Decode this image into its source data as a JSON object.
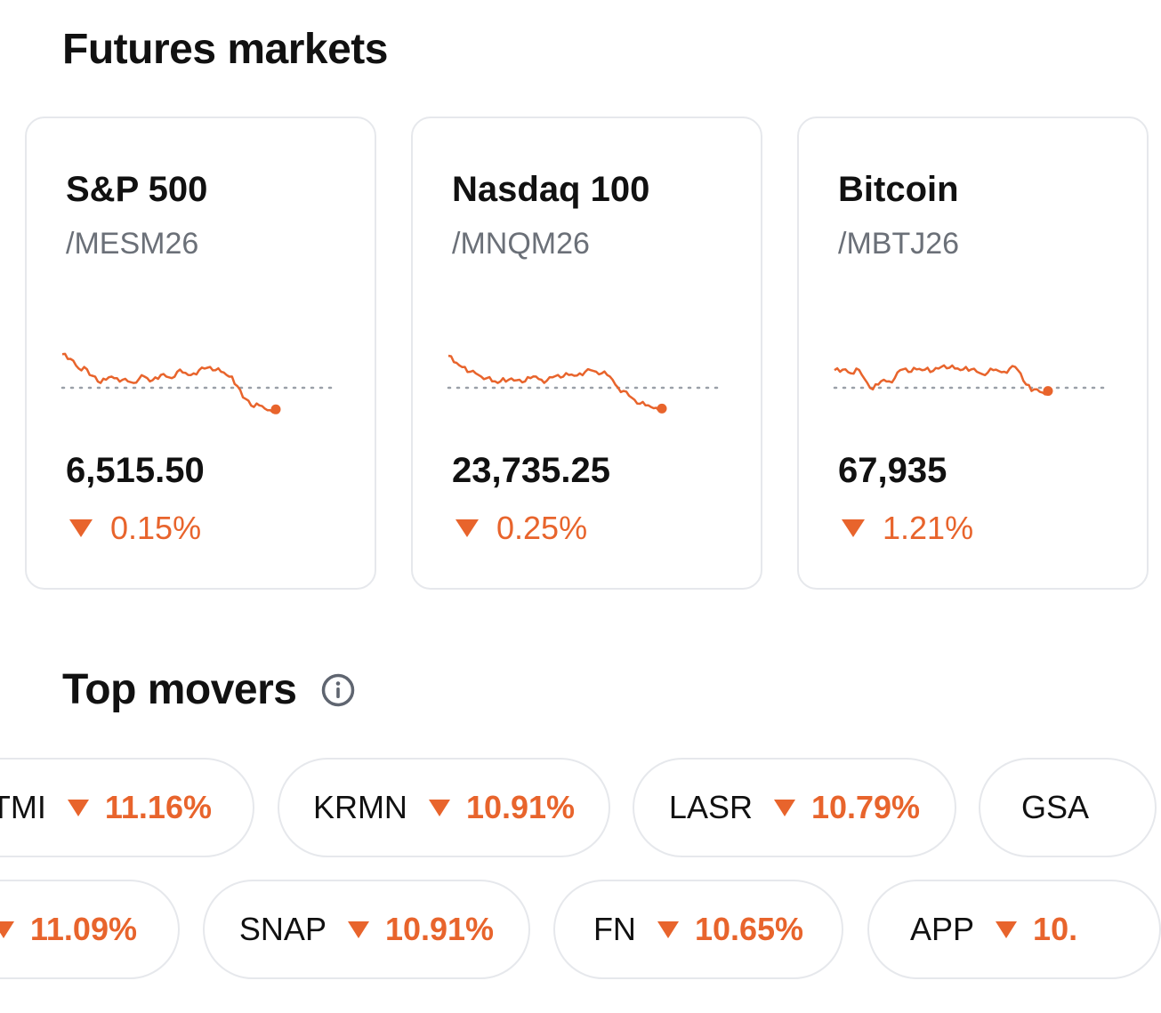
{
  "futures": {
    "title": "Futures markets",
    "cards": [
      {
        "name": "S&P 500",
        "symbol": "/MESM26",
        "price": "6,515.50",
        "change": "0.15%",
        "direction": "down",
        "sparkline": [
          72,
          66,
          64,
          54,
          56,
          46,
          44,
          36,
          40,
          44,
          42,
          40,
          38,
          36,
          41,
          44,
          38,
          43,
          46,
          44,
          42,
          50,
          49,
          46,
          48,
          52,
          54,
          56,
          52,
          50,
          46,
          44,
          32,
          18,
          14,
          6,
          8,
          4,
          2,
          3
        ]
      },
      {
        "name": "Nasdaq 100",
        "symbol": "/MNQM26",
        "price": "23,735.25",
        "change": "0.25%",
        "direction": "down",
        "sparkline": [
          70,
          62,
          58,
          56,
          50,
          48,
          44,
          42,
          38,
          36,
          42,
          40,
          39,
          40,
          38,
          42,
          44,
          40,
          39,
          43,
          46,
          44,
          46,
          45,
          48,
          50,
          52,
          50,
          48,
          46,
          40,
          30,
          26,
          20,
          15,
          10,
          8,
          6,
          5,
          4
        ]
      },
      {
        "name": "Bitcoin",
        "symbol": "/MBTJ26",
        "price": "67,935",
        "change": "1.21%",
        "direction": "down",
        "sparkline": [
          52,
          50,
          53,
          48,
          54,
          46,
          36,
          28,
          34,
          40,
          38,
          42,
          52,
          54,
          50,
          53,
          52,
          55,
          51,
          54,
          58,
          55,
          54,
          52,
          56,
          53,
          50,
          47,
          49,
          52,
          51,
          50,
          54,
          56,
          48,
          34,
          26,
          28,
          24,
          26
        ]
      }
    ]
  },
  "movers": {
    "title": "Top movers",
    "info_icon": "info-icon",
    "row1": [
      {
        "ticker": "TMI",
        "change": "11.16%"
      },
      {
        "ticker": "KRMN",
        "change": "10.91%"
      },
      {
        "ticker": "LASR",
        "change": "10.79%"
      },
      {
        "ticker": "GSA",
        "change": ""
      }
    ],
    "row2": [
      {
        "ticker": "",
        "change": "11.09%"
      },
      {
        "ticker": "SNAP",
        "change": "10.91%"
      },
      {
        "ticker": "FN",
        "change": "10.65%"
      },
      {
        "ticker": "APP",
        "change": "10."
      }
    ]
  },
  "colors": {
    "negative": "#e8642c",
    "border": "#e6e8ec",
    "muted": "#6b7078"
  }
}
